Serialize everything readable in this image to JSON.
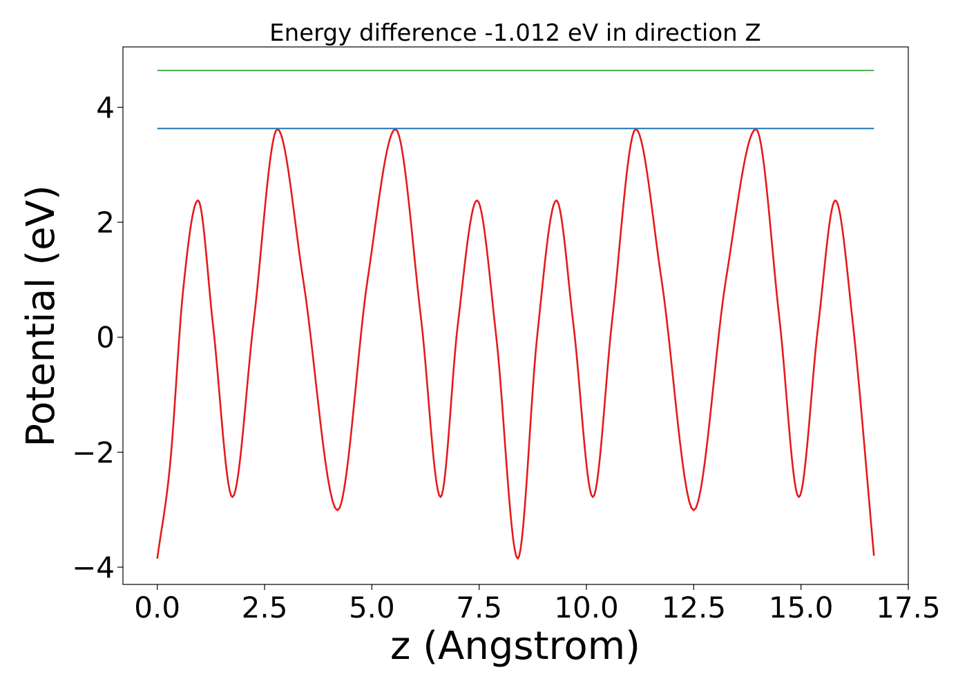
{
  "chart_data": {
    "type": "line",
    "title": "Energy difference -1.012 eV in direction Z",
    "xlabel": "z (Angstrom)",
    "ylabel": "Potential (eV)",
    "xlim": [
      -0.8,
      17.5
    ],
    "ylim": [
      -4.3,
      5.05
    ],
    "x_ticks": [
      0.0,
      2.5,
      5.0,
      7.5,
      10.0,
      12.5,
      15.0,
      17.5
    ],
    "x_tick_labels": [
      "0.0",
      "2.5",
      "5.0",
      "7.5",
      "10.0",
      "12.5",
      "15.0",
      "17.5"
    ],
    "y_ticks": [
      -4,
      -2,
      0,
      2,
      4
    ],
    "y_tick_labels": [
      "−4",
      "−2",
      "0",
      "2",
      "4"
    ],
    "grid": false,
    "legend": "none",
    "series": [
      {
        "color": "#e41a1c",
        "kind": "potential",
        "x": [
          0.0,
          0.3,
          0.6,
          0.95,
          1.3,
          1.75,
          2.25,
          2.8,
          3.4,
          4.2,
          4.9,
          5.55,
          6.15,
          6.6,
          7.0,
          7.45,
          7.9,
          8.4,
          8.85,
          9.3,
          9.7,
          10.15,
          10.6,
          11.15,
          11.75,
          12.5,
          13.25,
          13.95,
          14.5,
          14.95,
          15.4,
          15.8,
          16.2,
          16.7
        ],
        "y": [
          -3.85,
          -2.2,
          0.8,
          2.38,
          0.2,
          -2.78,
          0.3,
          3.62,
          1.0,
          -3.01,
          1.0,
          3.62,
          0.3,
          -2.78,
          0.2,
          2.38,
          0.0,
          -3.85,
          0.0,
          2.38,
          0.2,
          -2.78,
          0.3,
          3.62,
          1.0,
          -3.01,
          1.0,
          3.62,
          0.3,
          -2.78,
          0.2,
          2.38,
          0.3,
          -3.8
        ]
      },
      {
        "color": "#1f77b4",
        "kind": "hline",
        "x": [
          0.0,
          16.7
        ],
        "y": [
          3.63,
          3.63
        ]
      },
      {
        "color": "#4daf4a",
        "kind": "hline",
        "x": [
          0.0,
          16.7
        ],
        "y": [
          4.64,
          4.64
        ]
      }
    ]
  }
}
